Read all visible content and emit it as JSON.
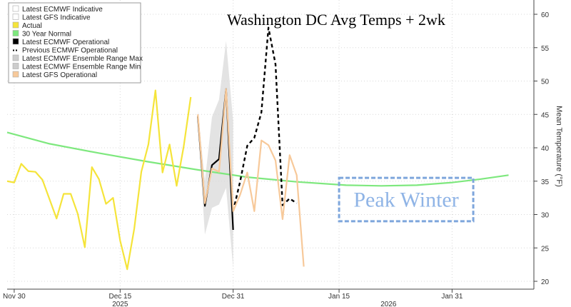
{
  "chart_data": {
    "type": "line",
    "title": "Washington DC Avg Temps + 2wk",
    "ylabel": "Mean Temperature (°F)",
    "ylim": [
      19,
      61
    ],
    "yticks": [
      20,
      25,
      30,
      35,
      40,
      45,
      50,
      55,
      60
    ],
    "x_axis": {
      "ticks": [
        {
          "date": "2025-11-30",
          "label": "Nov 30"
        },
        {
          "date": "2025-12-15",
          "label": "Dec 15"
        },
        {
          "date": "2025-12-31",
          "label": "Dec 31"
        },
        {
          "date": "2026-01-15",
          "label": "Jan 15"
        },
        {
          "date": "2026-01-31",
          "label": "Jan 31"
        }
      ],
      "year_labels": [
        {
          "date": "2025-12-15",
          "label": "2025"
        },
        {
          "date": "2026-01-22",
          "label": "2026"
        }
      ],
      "range": [
        "2025-11-29",
        "2026-02-10"
      ]
    },
    "legend": {
      "placement": "top-left",
      "entries": [
        {
          "name": "Latest ECMWF Indicative",
          "color": "#ffffff",
          "style": "box"
        },
        {
          "name": "Latest GFS Indicative",
          "color": "#ffffff",
          "style": "box"
        },
        {
          "name": "Actual",
          "color": "#f5e43a",
          "style": "box"
        },
        {
          "name": "30 Year Normal",
          "color": "#7ee87e",
          "style": "box"
        },
        {
          "name": "Latest ECMWF Operational",
          "color": "#000000",
          "style": "box"
        },
        {
          "name": "Previous ECMWF Operational",
          "color": "#000000",
          "style": "dashed"
        },
        {
          "name": "Latest ECMWF Ensemble Range Max",
          "color": "#cccccc",
          "style": "box"
        },
        {
          "name": "Latest ECMWF Ensemble Range Min",
          "color": "#cccccc",
          "style": "box"
        },
        {
          "name": "Latest GFS Operational",
          "color": "#f7c99a",
          "style": "box"
        }
      ]
    },
    "series": [
      {
        "name": "30 Year Normal",
        "color": "#7ee87e",
        "style": "solid",
        "points": [
          [
            "2025-11-29",
            42.3
          ],
          [
            "2025-12-05",
            40.6
          ],
          [
            "2025-12-12",
            39.2
          ],
          [
            "2025-12-19",
            37.9
          ],
          [
            "2025-12-26",
            36.7
          ],
          [
            "2026-01-02",
            35.6
          ],
          [
            "2026-01-09",
            34.9
          ],
          [
            "2026-01-16",
            34.4
          ],
          [
            "2026-01-21",
            34.3
          ],
          [
            "2026-01-26",
            34.4
          ],
          [
            "2026-01-31",
            34.8
          ],
          [
            "2026-02-04",
            35.3
          ],
          [
            "2026-02-08",
            35.9
          ]
        ]
      },
      {
        "name": "Actual",
        "color": "#f5e43a",
        "style": "solid",
        "points": [
          [
            "2025-11-29",
            35.0
          ],
          [
            "2025-11-30",
            34.8
          ],
          [
            "2025-12-01",
            37.6
          ],
          [
            "2025-12-02",
            36.5
          ],
          [
            "2025-12-03",
            36.4
          ],
          [
            "2025-12-04",
            35.2
          ],
          [
            "2025-12-05",
            32.3
          ],
          [
            "2025-12-06",
            29.4
          ],
          [
            "2025-12-07",
            33.1
          ],
          [
            "2025-12-08",
            33.1
          ],
          [
            "2025-12-09",
            30.1
          ],
          [
            "2025-12-10",
            25.1
          ],
          [
            "2025-12-11",
            37.1
          ],
          [
            "2025-12-12",
            35.3
          ],
          [
            "2025-12-13",
            31.6
          ],
          [
            "2025-12-14",
            32.5
          ],
          [
            "2025-12-15",
            26.1
          ],
          [
            "2025-12-16",
            21.8
          ],
          [
            "2025-12-17",
            27.9
          ],
          [
            "2025-12-18",
            36.4
          ],
          [
            "2025-12-19",
            40.5
          ],
          [
            "2025-12-20",
            48.6
          ],
          [
            "2025-12-21",
            36.3
          ],
          [
            "2025-12-22",
            40.5
          ],
          [
            "2025-12-23",
            34.3
          ],
          [
            "2025-12-24",
            40.2
          ],
          [
            "2025-12-25",
            47.6
          ]
        ]
      },
      {
        "name": "Latest ECMWF Operational",
        "color": "#000000",
        "style": "solid",
        "points": [
          [
            "2025-12-26",
            44.7
          ],
          [
            "2025-12-27",
            31.3
          ],
          [
            "2025-12-28",
            37.4
          ],
          [
            "2025-12-29",
            38.3
          ],
          [
            "2025-12-30",
            48.8
          ],
          [
            "2025-12-31",
            27.7
          ]
        ]
      },
      {
        "name": "Previous ECMWF Operational",
        "color": "#000000",
        "style": "dashed",
        "points": [
          [
            "2025-12-31",
            30.5
          ],
          [
            "2026-01-01",
            35.0
          ],
          [
            "2026-01-02",
            40.3
          ],
          [
            "2026-01-03",
            41.5
          ],
          [
            "2026-01-04",
            45.3
          ],
          [
            "2026-01-05",
            58.0
          ],
          [
            "2026-01-06",
            52.5
          ],
          [
            "2026-01-07",
            31.4
          ],
          [
            "2026-01-08",
            32.4
          ],
          [
            "2026-01-09",
            31.7
          ]
        ]
      },
      {
        "name": "Latest GFS Operational",
        "color": "#f7c99a",
        "style": "solid",
        "points": [
          [
            "2025-12-26",
            45.0
          ],
          [
            "2025-12-27",
            31.7
          ],
          [
            "2025-12-28",
            36.9
          ],
          [
            "2025-12-29",
            36.4
          ],
          [
            "2025-12-30",
            48.8
          ],
          [
            "2025-12-31",
            30.5
          ],
          [
            "2026-01-01",
            33.0
          ],
          [
            "2026-01-02",
            36.3
          ],
          [
            "2026-01-03",
            30.5
          ],
          [
            "2026-01-04",
            41.1
          ],
          [
            "2026-01-05",
            40.4
          ],
          [
            "2026-01-06",
            38.1
          ],
          [
            "2026-01-07",
            29.3
          ],
          [
            "2026-01-08",
            38.9
          ],
          [
            "2026-01-09",
            35.9
          ],
          [
            "2026-01-10",
            22.2
          ]
        ]
      },
      {
        "name": "Latest ECMWF Ensemble Range",
        "color": "#cccccc",
        "style": "band",
        "max": [
          [
            "2025-12-26",
            45.5
          ],
          [
            "2025-12-27",
            35.0
          ],
          [
            "2025-12-28",
            44.6
          ],
          [
            "2025-12-29",
            47.2
          ],
          [
            "2025-12-30",
            56.0
          ],
          [
            "2025-12-31",
            44.0
          ]
        ],
        "min": [
          [
            "2025-12-26",
            43.5
          ],
          [
            "2025-12-27",
            27.0
          ],
          [
            "2025-12-28",
            31.0
          ],
          [
            "2025-12-29",
            31.5
          ],
          [
            "2025-12-30",
            34.0
          ],
          [
            "2025-12-31",
            22.0
          ]
        ]
      }
    ],
    "annotations": [
      {
        "type": "box",
        "text": "Peak Winter",
        "x_start": "2026-01-15",
        "x_end": "2026-02-03",
        "y_low": 29,
        "y_high": 35.5,
        "color": "#8fb4e6"
      }
    ]
  }
}
